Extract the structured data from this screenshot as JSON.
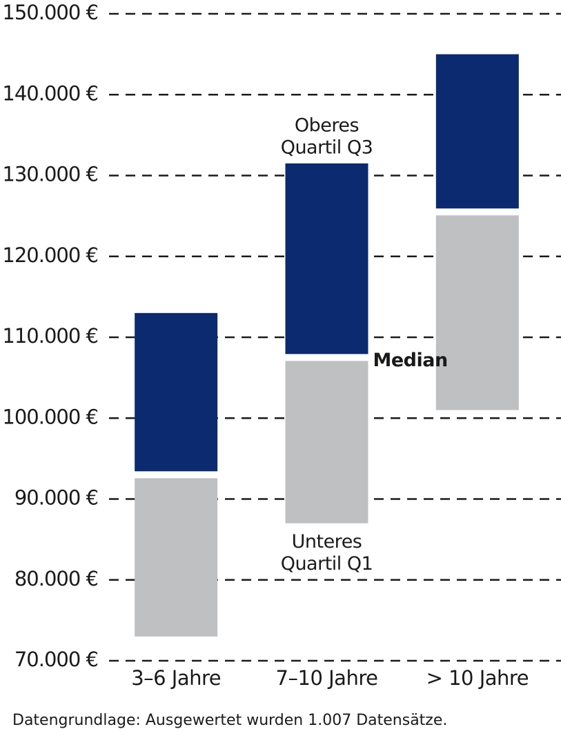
{
  "chart_data": {
    "type": "floating-box",
    "categories": [
      "3–6 Jahre",
      "7–10 Jahre",
      "> 10 Jahre"
    ],
    "q1": [
      73000,
      87000,
      101000
    ],
    "median": [
      93000,
      107500,
      125500
    ],
    "q3": [
      113000,
      131500,
      145000
    ],
    "q1_color": "#bfc0c2",
    "q3_color": "#0b2a6f",
    "ylim": [
      70000,
      150000
    ],
    "yticks": [
      {
        "value": 70000,
        "label": "70.000 €"
      },
      {
        "value": 80000,
        "label": "80.000 €"
      },
      {
        "value": 90000,
        "label": "90.000 €"
      },
      {
        "value": 100000,
        "label": "100.000 €"
      },
      {
        "value": 110000,
        "label": "110.000 €"
      },
      {
        "value": 120000,
        "label": "120.000 €"
      },
      {
        "value": 130000,
        "label": "130.000 €"
      },
      {
        "value": 140000,
        "label": "140.000 €"
      },
      {
        "value": 150000,
        "label": "150.000 €"
      }
    ],
    "grid": true,
    "annotations": {
      "q3": [
        "Oberes",
        "Quartil Q3"
      ],
      "median": "Median",
      "q1": [
        "Unteres",
        "Quartil Q1"
      ]
    },
    "footnote": "Datengrundlage: Ausgewertet wurden 1.007 Datensätze."
  }
}
